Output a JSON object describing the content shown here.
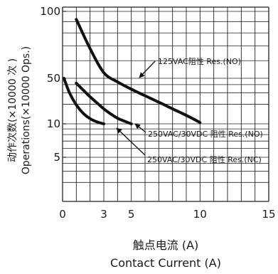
{
  "chart_data": {
    "type": "line",
    "xlabel_cn": "触点电流 (A)",
    "xlabel_en": "Contact Current (A)",
    "ylabel_cn": "动作次数(×10000 次 )",
    "ylabel_en": "Operations(×10000 Ops.)",
    "x_ticks": [
      {
        "value": 0,
        "label": "0"
      },
      {
        "value": 3,
        "label": "3"
      },
      {
        "value": 5,
        "label": "5"
      },
      {
        "value": 10,
        "label": "10"
      },
      {
        "value": 15,
        "label": "15"
      }
    ],
    "y_ticks": [
      {
        "value": 100,
        "label": "100"
      },
      {
        "value": 50,
        "label": "50"
      },
      {
        "value": 10,
        "label": "10"
      },
      {
        "value": 5,
        "label": "5"
      }
    ],
    "xlim": [
      0,
      15
    ],
    "ylim": [
      1,
      100
    ],
    "y_scale": "log",
    "grid": true,
    "series": [
      {
        "name": "125VAC阻性 Res.(NO)",
        "x": [
          1.0,
          2.0,
          3.0,
          4.0,
          5.0,
          6.0,
          7.0,
          8.0,
          9.0,
          10.0
        ],
        "y": [
          92,
          68,
          53,
          44,
          34,
          27,
          21.5,
          17,
          13.5,
          10.5
        ]
      },
      {
        "name": "250VAC/30VDC 阻性 Res.(NO)",
        "x": [
          1.0,
          1.5,
          2.0,
          2.5,
          3.0,
          3.5,
          4.0,
          4.5,
          5.0
        ],
        "y": [
          42,
          33,
          26,
          21,
          17,
          14.2,
          12.2,
          11,
          10
        ]
      },
      {
        "name": "250VAC/30VDC 阻性 Res.(NC)",
        "x": [
          0.1,
          0.5,
          1.0,
          1.5,
          2.0,
          2.5,
          3.0
        ],
        "y": [
          50,
          30,
          19.5,
          14.5,
          12,
          10.7,
          10
        ]
      }
    ]
  }
}
